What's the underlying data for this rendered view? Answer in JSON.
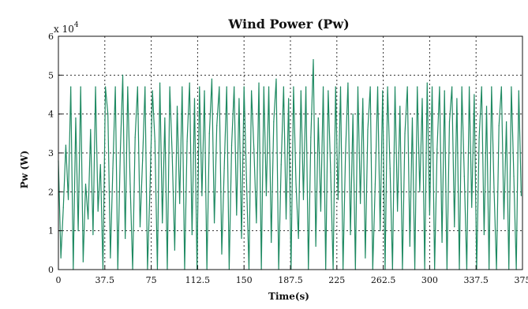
{
  "chart_data": {
    "type": "line",
    "title": "Wind Power (Pw)",
    "xlabel": "Time(s)",
    "ylabel": "Pw (W)",
    "y_multiplier": "x 10",
    "y_multiplier_exponent": "4",
    "xlim": [
      0,
      375
    ],
    "ylim": [
      0,
      6
    ],
    "x_ticks": [
      0,
      37.5,
      75,
      112.5,
      150,
      187.5,
      225,
      262.5,
      300,
      337.5,
      375
    ],
    "x_tick_labels": [
      "0",
      "37.5",
      "75",
      "112.5",
      "150",
      "187.5",
      "225",
      "262.5",
      "300",
      "337.5",
      "375"
    ],
    "y_ticks": [
      0,
      1,
      2,
      3,
      4,
      5,
      6
    ],
    "y_tick_labels": [
      "0",
      "1",
      "2",
      "3",
      "4",
      "5",
      "6"
    ],
    "grid": true,
    "grid_style": "dotted",
    "line_color": "#1f8a62",
    "series": [
      {
        "values": [
          [
            0,
            2.8
          ],
          [
            2,
            0.3
          ],
          [
            4,
            1.6
          ],
          [
            6,
            3.2
          ],
          [
            8,
            1.8
          ],
          [
            10,
            4.7
          ],
          [
            12,
            0.0
          ],
          [
            14,
            3.9
          ],
          [
            16,
            1.0
          ],
          [
            18,
            4.7
          ],
          [
            20,
            0.2
          ],
          [
            22,
            2.2
          ],
          [
            24,
            1.3
          ],
          [
            26,
            3.6
          ],
          [
            28,
            0.9
          ],
          [
            30,
            4.7
          ],
          [
            32,
            1.5
          ],
          [
            34,
            2.7
          ],
          [
            36,
            0.0
          ],
          [
            38,
            4.7
          ],
          [
            40,
            4.0
          ],
          [
            42,
            0.3
          ],
          [
            44,
            2.6
          ],
          [
            46,
            4.7
          ],
          [
            48,
            0.0
          ],
          [
            50,
            3.0
          ],
          [
            52,
            5.0
          ],
          [
            54,
            0.8
          ],
          [
            56,
            4.7
          ],
          [
            58,
            2.2
          ],
          [
            60,
            0.0
          ],
          [
            62,
            3.4
          ],
          [
            64,
            4.7
          ],
          [
            66,
            1.1
          ],
          [
            68,
            2.8
          ],
          [
            70,
            4.7
          ],
          [
            72,
            0.0
          ],
          [
            74,
            2.1
          ],
          [
            76,
            4.6
          ],
          [
            78,
            3.3
          ],
          [
            80,
            0.0
          ],
          [
            82,
            4.8
          ],
          [
            84,
            1.2
          ],
          [
            86,
            3.9
          ],
          [
            88,
            0.0
          ],
          [
            90,
            4.7
          ],
          [
            92,
            2.9
          ],
          [
            94,
            0.5
          ],
          [
            96,
            4.2
          ],
          [
            98,
            1.7
          ],
          [
            100,
            4.7
          ],
          [
            102,
            0.0
          ],
          [
            104,
            3.3
          ],
          [
            106,
            4.8
          ],
          [
            108,
            0.9
          ],
          [
            110,
            4.4
          ],
          [
            112,
            0.0
          ],
          [
            114,
            4.7
          ],
          [
            116,
            1.9
          ],
          [
            118,
            4.6
          ],
          [
            120,
            0.0
          ],
          [
            122,
            3.5
          ],
          [
            124,
            4.9
          ],
          [
            126,
            1.2
          ],
          [
            128,
            3.7
          ],
          [
            130,
            4.7
          ],
          [
            132,
            0.4
          ],
          [
            134,
            2.6
          ],
          [
            136,
            4.7
          ],
          [
            138,
            0.0
          ],
          [
            140,
            3.2
          ],
          [
            142,
            4.7
          ],
          [
            144,
            1.4
          ],
          [
            146,
            4.4
          ],
          [
            148,
            0.8
          ],
          [
            150,
            4.7
          ],
          [
            152,
            2.3
          ],
          [
            154,
            0.0
          ],
          [
            156,
            4.6
          ],
          [
            158,
            3.1
          ],
          [
            160,
            1.2
          ],
          [
            162,
            4.8
          ],
          [
            164,
            0.0
          ],
          [
            166,
            4.7
          ],
          [
            168,
            1.9
          ],
          [
            170,
            4.7
          ],
          [
            172,
            0.7
          ],
          [
            174,
            3.8
          ],
          [
            176,
            4.9
          ],
          [
            178,
            0.0
          ],
          [
            180,
            2.7
          ],
          [
            182,
            4.7
          ],
          [
            184,
            1.3
          ],
          [
            186,
            4.4
          ],
          [
            188,
            0.0
          ],
          [
            190,
            4.7
          ],
          [
            192,
            2.2
          ],
          [
            194,
            0.8
          ],
          [
            196,
            4.6
          ],
          [
            198,
            1.8
          ],
          [
            200,
            4.7
          ],
          [
            202,
            0.0
          ],
          [
            204,
            3.4
          ],
          [
            206,
            5.4
          ],
          [
            208,
            0.6
          ],
          [
            210,
            3.9
          ],
          [
            212,
            1.5
          ],
          [
            214,
            4.7
          ],
          [
            216,
            0.0
          ],
          [
            218,
            4.6
          ],
          [
            220,
            2.5
          ],
          [
            222,
            0.0
          ],
          [
            224,
            4.7
          ],
          [
            226,
            1.8
          ],
          [
            228,
            4.7
          ],
          [
            230,
            0.0
          ],
          [
            232,
            3.0
          ],
          [
            234,
            4.8
          ],
          [
            236,
            0.9
          ],
          [
            238,
            4.0
          ],
          [
            240,
            0.0
          ],
          [
            242,
            4.7
          ],
          [
            244,
            1.7
          ],
          [
            246,
            4.4
          ],
          [
            248,
            0.3
          ],
          [
            250,
            3.6
          ],
          [
            252,
            4.7
          ],
          [
            254,
            0.0
          ],
          [
            256,
            2.2
          ],
          [
            258,
            4.7
          ],
          [
            260,
            1.0
          ],
          [
            262,
            4.6
          ],
          [
            264,
            0.0
          ],
          [
            266,
            4.7
          ],
          [
            268,
            2.6
          ],
          [
            270,
            0.0
          ],
          [
            272,
            4.7
          ],
          [
            274,
            1.5
          ],
          [
            276,
            4.2
          ],
          [
            278,
            0.0
          ],
          [
            280,
            3.5
          ],
          [
            282,
            4.7
          ],
          [
            284,
            0.6
          ],
          [
            286,
            3.9
          ],
          [
            288,
            0.0
          ],
          [
            290,
            4.7
          ],
          [
            292,
            2.0
          ],
          [
            294,
            4.4
          ],
          [
            296,
            0.0
          ],
          [
            298,
            4.8
          ],
          [
            300,
            1.4
          ],
          [
            302,
            4.7
          ],
          [
            304,
            0.0
          ],
          [
            306,
            3.1
          ],
          [
            308,
            4.7
          ],
          [
            310,
            0.7
          ],
          [
            312,
            4.6
          ],
          [
            314,
            0.0
          ],
          [
            316,
            3.8
          ],
          [
            318,
            4.7
          ],
          [
            320,
            1.1
          ],
          [
            322,
            4.4
          ],
          [
            324,
            0.0
          ],
          [
            326,
            4.7
          ],
          [
            328,
            2.4
          ],
          [
            330,
            0.0
          ],
          [
            332,
            4.7
          ],
          [
            334,
            1.6
          ],
          [
            336,
            4.5
          ],
          [
            338,
            0.0
          ],
          [
            340,
            3.4
          ],
          [
            342,
            4.7
          ],
          [
            344,
            0.9
          ],
          [
            346,
            4.2
          ],
          [
            348,
            0.0
          ],
          [
            350,
            4.7
          ],
          [
            352,
            2.1
          ],
          [
            354,
            0.0
          ],
          [
            356,
            3.7
          ],
          [
            358,
            4.7
          ],
          [
            360,
            1.3
          ],
          [
            362,
            3.8
          ],
          [
            364,
            0.0
          ],
          [
            366,
            4.7
          ],
          [
            368,
            2.4
          ],
          [
            370,
            0.0
          ],
          [
            372,
            4.6
          ],
          [
            374,
            1.9
          ]
        ]
      }
    ]
  }
}
